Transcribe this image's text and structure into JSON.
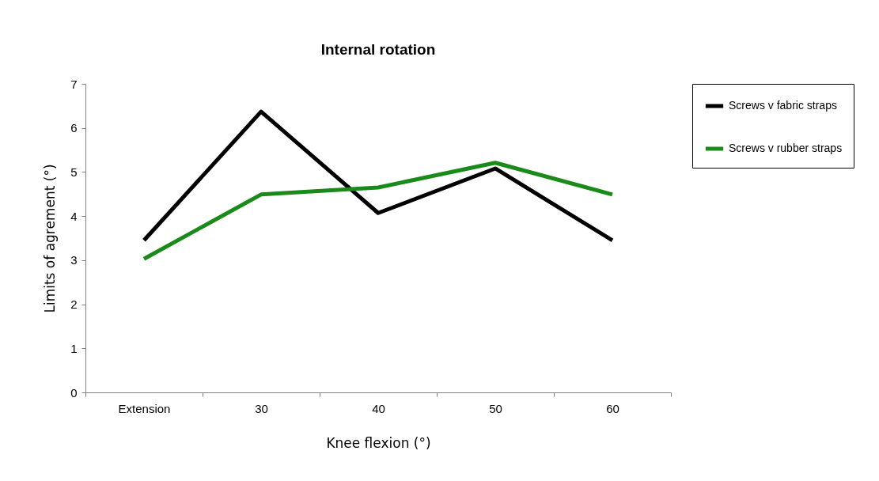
{
  "chart_data": {
    "type": "line",
    "title": "Internal rotation",
    "xlabel": "Knee flexion (°)",
    "ylabel": "Limits of agrement (°)",
    "categories": [
      "Extension",
      "30",
      "40",
      "50",
      "60"
    ],
    "series": [
      {
        "name": "Screws v fabric straps",
        "color": "#000000",
        "values": [
          3.45,
          6.37,
          4.07,
          5.08,
          3.45
        ]
      },
      {
        "name": "Screws v rubber straps",
        "color": "#1a8a1a",
        "values": [
          3.03,
          4.49,
          4.65,
          5.21,
          4.49
        ]
      }
    ],
    "ylim": [
      0,
      7
    ],
    "yticks": [
      0,
      1,
      2,
      3,
      4,
      5,
      6,
      7
    ],
    "grid": false,
    "legend": "right",
    "marker": "none",
    "line_style": "solid"
  }
}
